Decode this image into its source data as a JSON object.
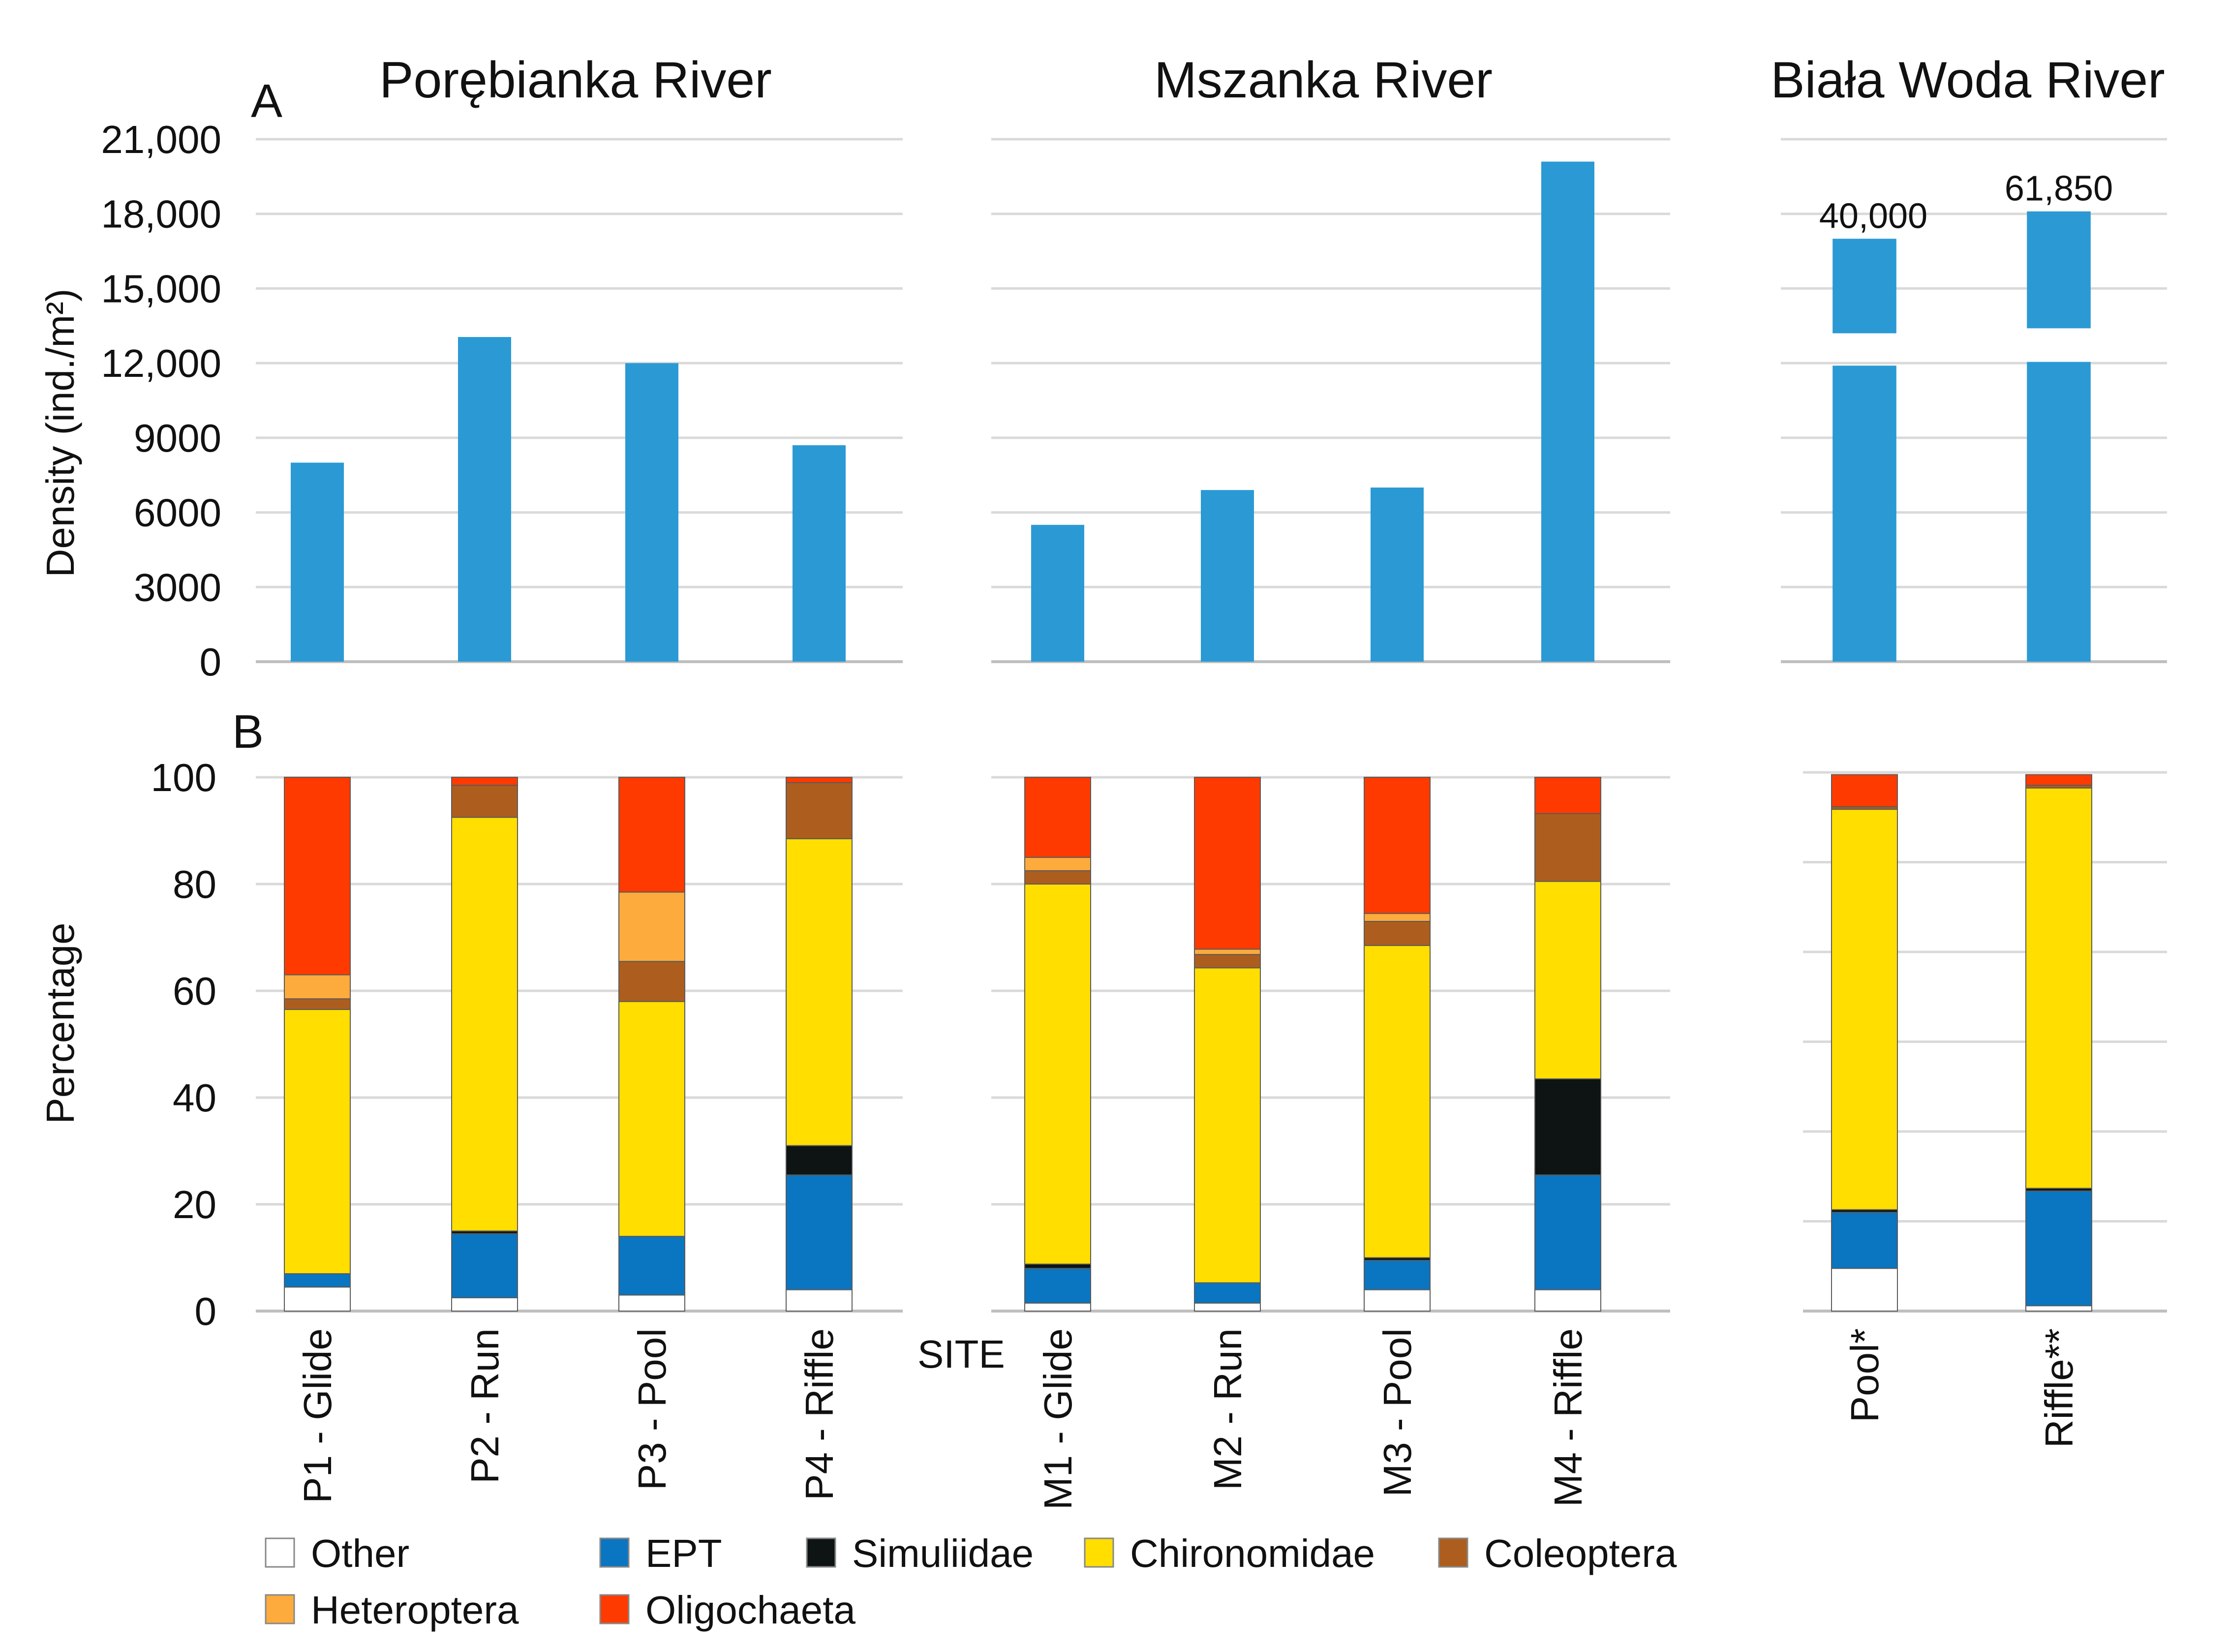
{
  "chart_data": {
    "type": "bar",
    "panels": [
      {
        "label": "A",
        "type": "bar",
        "ylabel": "Density (ind./m²)",
        "yticks": [
          "0",
          "3000",
          "6000",
          "9000",
          "12,000",
          "15,000",
          "18,000",
          "21,000"
        ],
        "ylim": [
          0,
          21000
        ],
        "rivers": [
          {
            "name": "Porębianka River",
            "categories": [
              "P1 - Glide",
              "P2 - Run",
              "P3 - Pool",
              "P4 - Riffle"
            ],
            "values": [
              8000,
              13050,
              12000,
              8700
            ]
          },
          {
            "name": "Mszanka River",
            "categories": [
              "M1 - Glide",
              "M2 - Run",
              "M3 - Pool",
              "M4 - Riffle"
            ],
            "values": [
              5500,
              6900,
              7000,
              20100
            ]
          },
          {
            "name": "Biała Woda River",
            "categories": [
              "Pool*",
              "Riffle**"
            ],
            "values": [
              40000,
              61850
            ],
            "value_labels": [
              "40,000",
              "61,850"
            ],
            "broken_axis": true
          }
        ]
      },
      {
        "label": "B",
        "type": "stacked_bar",
        "ylabel": "Percentage",
        "yticks": [
          "0",
          "20",
          "40",
          "60",
          "80",
          "100"
        ],
        "ylim": [
          0,
          100
        ],
        "xlabel": "SITE",
        "series_names": [
          "Other",
          "EPT",
          "Simuliidae",
          "Chironomidae",
          "Coleoptera",
          "Heteroptera",
          "Oligochaeta"
        ],
        "series_colors": [
          "#ffffff",
          "#0a75c0",
          "#0d1413",
          "#ffde00",
          "#ad5e1e",
          "#fcab3c",
          "#ff3a00"
        ],
        "rivers": [
          {
            "name": "Porębianka River",
            "categories": [
              "P1 - Glide",
              "P2 - Run",
              "P3 - Pool",
              "P4 - Riffle"
            ],
            "stacks": [
              [
                4.5,
                2.5,
                0,
                49.5,
                2,
                4.5,
                37
              ],
              [
                2.5,
                12,
                0.5,
                77.5,
                6,
                0,
                1.5
              ],
              [
                3,
                11,
                0,
                44,
                7.5,
                13,
                21.5
              ],
              [
                4,
                21.5,
                5.5,
                57.5,
                10.5,
                0,
                1
              ]
            ]
          },
          {
            "name": "Mszanka River",
            "categories": [
              "M1 - Glide",
              "M2 - Run",
              "M3 - Pool",
              "M4 - Riffle"
            ],
            "stacks": [
              [
                1.5,
                6.5,
                0.8,
                71.2,
                2.5,
                2.5,
                15
              ],
              [
                1.5,
                3.8,
                0,
                59,
                2.5,
                1,
                32.2
              ],
              [
                4,
                5.5,
                0.5,
                58.5,
                4.5,
                1.5,
                25.5
              ],
              [
                4,
                21.5,
                18,
                37,
                12.7,
                0,
                6.8
              ]
            ]
          },
          {
            "name": "Biała Woda River",
            "categories": [
              "Pool*",
              "Riffle**"
            ],
            "stacks": [
              [
                8,
                10.5,
                0.5,
                75,
                0.5,
                0,
                6
              ],
              [
                1,
                21.5,
                0.5,
                75,
                0.5,
                0,
                2
              ]
            ]
          }
        ]
      }
    ]
  }
}
